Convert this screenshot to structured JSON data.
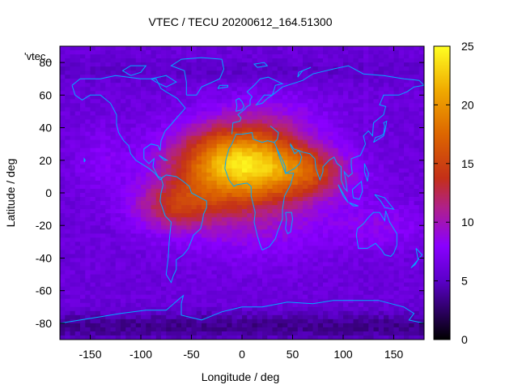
{
  "chart_data": {
    "type": "heatmap",
    "title": "VTEC / TECU 20200612_164.51300",
    "xlabel": "Longitude / deg",
    "ylabel": "Latitude / deg",
    "key_label": "'vtec_",
    "xlim": [
      -180,
      180
    ],
    "ylim": [
      -90,
      90
    ],
    "x_ticks": [
      -150,
      -100,
      -50,
      0,
      50,
      100,
      150
    ],
    "y_ticks": [
      -80,
      -60,
      -40,
      -20,
      0,
      20,
      40,
      60,
      80
    ],
    "colorbar": {
      "range": [
        0,
        25
      ],
      "ticks": [
        0,
        5,
        10,
        15,
        20,
        25
      ],
      "colormap": "black-purple-red-orange-yellow"
    },
    "grid": false,
    "overlay": "coastlines",
    "coastline_color": "#00aaff",
    "grid_lon_step": 5,
    "grid_lat_step": 2.5,
    "model": {
      "background": 6.0,
      "peaks": [
        {
          "lon": 0,
          "lat": 18,
          "lon_sigma": 45,
          "lat_sigma": 16,
          "amplitude": 17.5
        },
        {
          "lon": 70,
          "lat": 12,
          "lon_sigma": 28,
          "lat_sigma": 10,
          "amplitude": 5
        },
        {
          "lon": -65,
          "lat": -8,
          "lon_sigma": 28,
          "lat_sigma": 10,
          "amplitude": 6
        },
        {
          "lon": 10,
          "lat": -15,
          "lon_sigma": 60,
          "lat_sigma": 18,
          "amplitude": 3
        },
        {
          "lon": 30,
          "lat": 50,
          "lon_sigma": 40,
          "lat_sigma": 10,
          "amplitude": 1.5
        },
        {
          "lon": -140,
          "lat": 20,
          "lon_sigma": 20,
          "lat_sigma": 15,
          "amplitude": 1.5
        },
        {
          "lon": 140,
          "lat": -20,
          "lon_sigma": 30,
          "lat_sigma": 10,
          "amplitude": 2
        }
      ],
      "polar_dip": [
        {
          "lat": -82,
          "lat_sigma": 6,
          "amplitude": -2.5
        },
        {
          "lat": 75,
          "lat_sigma": 5,
          "amplitude": -0.8
        }
      ]
    }
  }
}
